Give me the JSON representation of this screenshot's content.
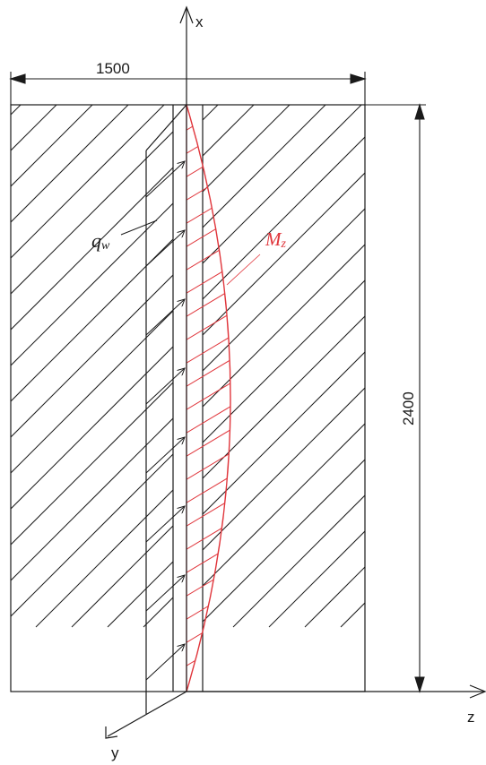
{
  "axes": {
    "x_label": "x",
    "y_label": "y",
    "z_label": "z"
  },
  "dimensions": {
    "width": "1500",
    "height": "2400"
  },
  "labels": {
    "load": "q",
    "load_sub": "w",
    "moment": "M",
    "moment_sub": "z"
  },
  "colors": {
    "line": "#1a1a1a",
    "moment": "#e0353b",
    "background": "#ffffff"
  }
}
